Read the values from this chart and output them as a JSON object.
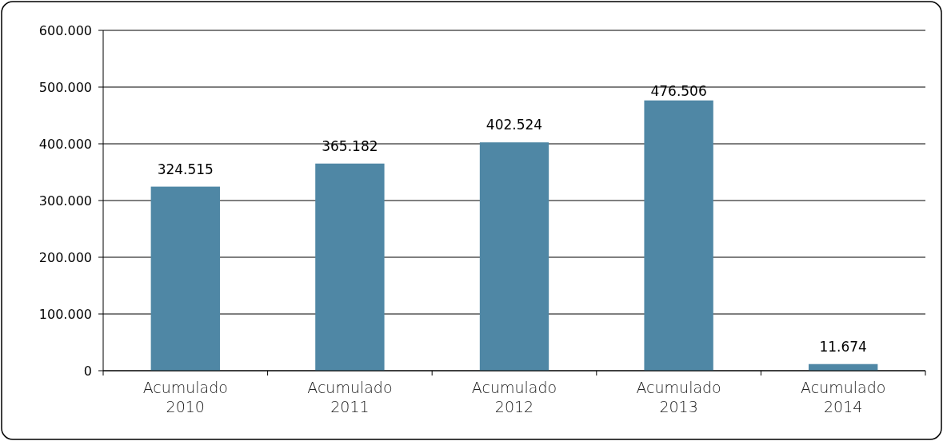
{
  "chart_data": {
    "type": "bar",
    "categories": [
      "Acumulado 2010",
      "Acumulado 2011",
      "Acumulado 2012",
      "Acumulado 2013",
      "Acumulado 2014"
    ],
    "values": [
      324515,
      365182,
      402524,
      476506,
      11674
    ],
    "value_labels": [
      "324.515",
      "365.182",
      "402.524",
      "476.506",
      "11.674"
    ],
    "color": "#4f87a5",
    "ylim": [
      0,
      600000
    ],
    "yticks": [
      {
        "value": 0,
        "label": "0"
      },
      {
        "value": 100000,
        "label": "100.000"
      },
      {
        "value": 200000,
        "label": "200.000"
      },
      {
        "value": 300000,
        "label": "300.000"
      },
      {
        "value": 400000,
        "label": "400.000"
      },
      {
        "value": 500000,
        "label": "500.000"
      },
      {
        "value": 600000,
        "label": "600.000"
      }
    ],
    "grid": "y"
  }
}
